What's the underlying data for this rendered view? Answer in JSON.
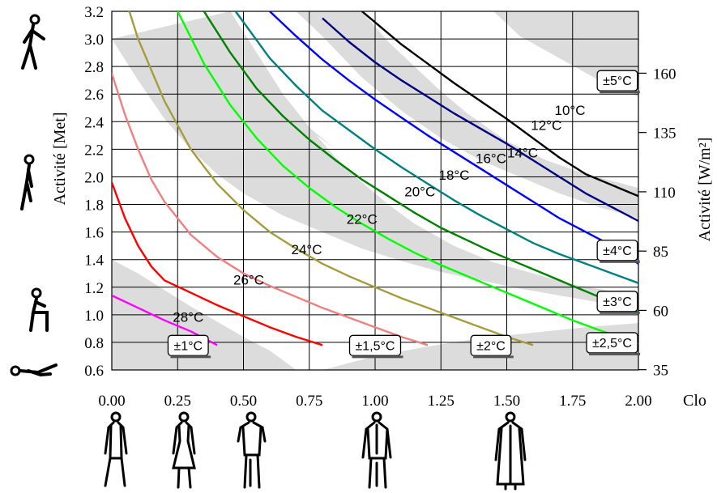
{
  "chart_data": {
    "type": "line",
    "xlabel": "Clo",
    "ylabel_left": "Activité [Met]",
    "ylabel_right": "Activité [W/m²]",
    "xlim": [
      0,
      2
    ],
    "ylim": [
      0.6,
      3.2
    ],
    "x_ticks": [
      "0.00",
      "0.25",
      "0.50",
      "0.75",
      "1.00",
      "1.25",
      "1.50",
      "1.75",
      "2.00"
    ],
    "y_ticks_left": [
      "0.6",
      "0.8",
      "1.0",
      "1.2",
      "1.4",
      "1.6",
      "1.8",
      "2.0",
      "2.2",
      "2.4",
      "2.6",
      "2.8",
      "3.0",
      "3.2"
    ],
    "y_ticks_right": [
      {
        "value": 35,
        "label": "35"
      },
      {
        "value": 60,
        "label": "60"
      },
      {
        "value": 85,
        "label": "85"
      },
      {
        "value": 110,
        "label": "110"
      },
      {
        "value": 135,
        "label": "135"
      },
      {
        "value": 160,
        "label": "160"
      }
    ],
    "grid": true,
    "series": [
      {
        "name": "28°C",
        "color": "#ff00ff",
        "label_at": [
          0.29,
          0.95
        ],
        "x": [
          0.0,
          0.1,
          0.2,
          0.3,
          0.4
        ],
        "y": [
          1.14,
          1.05,
          0.96,
          0.88,
          0.78
        ]
      },
      {
        "name": "26°C",
        "color": "#ff0000",
        "label_at": [
          0.52,
          1.22
        ],
        "x": [
          0.0,
          0.05,
          0.1,
          0.15,
          0.2,
          0.3,
          0.4,
          0.5,
          0.6,
          0.7,
          0.8
        ],
        "y": [
          1.96,
          1.7,
          1.5,
          1.35,
          1.25,
          1.16,
          1.07,
          0.99,
          0.91,
          0.84,
          0.78
        ]
      },
      {
        "name": "24°C",
        "color": "#f08080",
        "label_at": [
          0.74,
          1.44
        ],
        "x": [
          0.0,
          0.05,
          0.1,
          0.15,
          0.2,
          0.3,
          0.4,
          0.5,
          0.6,
          0.7,
          0.8,
          0.9,
          1.0,
          1.1,
          1.2
        ],
        "y": [
          2.75,
          2.45,
          2.2,
          1.98,
          1.82,
          1.58,
          1.42,
          1.3,
          1.21,
          1.13,
          1.05,
          0.98,
          0.91,
          0.84,
          0.78
        ]
      },
      {
        "name": "22°C",
        "color": "#a59d3c",
        "label_at": [
          0.95,
          1.66
        ],
        "x": [
          0.0,
          0.1,
          0.2,
          0.3,
          0.4,
          0.5,
          0.6,
          0.7,
          0.8,
          0.9,
          1.0,
          1.1,
          1.2,
          1.3,
          1.4,
          1.5,
          1.6
        ],
        "y": [
          3.6,
          3.0,
          2.55,
          2.2,
          1.95,
          1.76,
          1.6,
          1.48,
          1.37,
          1.28,
          1.2,
          1.12,
          1.05,
          0.98,
          0.91,
          0.84,
          0.78
        ]
      },
      {
        "name": "20°C",
        "color": "#00ff00",
        "label_at": [
          1.17,
          1.86
        ],
        "x": [
          0.25,
          0.35,
          0.45,
          0.55,
          0.65,
          0.75,
          0.85,
          0.95,
          1.05,
          1.15,
          1.25,
          1.35,
          1.45,
          1.55,
          1.65,
          1.75,
          1.85,
          2.0
        ],
        "y": [
          3.2,
          2.82,
          2.52,
          2.28,
          2.08,
          1.92,
          1.78,
          1.66,
          1.55,
          1.45,
          1.36,
          1.28,
          1.2,
          1.12,
          1.04,
          0.96,
          0.89,
          0.79
        ]
      },
      {
        "name": "18°C",
        "color": "#008000",
        "label_at": [
          1.3,
          1.98
        ],
        "x": [
          0.35,
          0.45,
          0.55,
          0.65,
          0.75,
          0.85,
          0.95,
          1.05,
          1.15,
          1.25,
          1.35,
          1.45,
          1.55,
          1.65,
          1.75,
          1.85,
          2.0
        ],
        "y": [
          3.2,
          2.9,
          2.64,
          2.44,
          2.27,
          2.12,
          1.98,
          1.86,
          1.74,
          1.63,
          1.54,
          1.45,
          1.37,
          1.29,
          1.21,
          1.13,
          1.02
        ]
      },
      {
        "name": "16°C",
        "color": "#008080",
        "label_at": [
          1.44,
          2.1
        ],
        "x": [
          0.47,
          0.6,
          0.7,
          0.8,
          0.9,
          1.0,
          1.1,
          1.2,
          1.3,
          1.4,
          1.5,
          1.6,
          1.7,
          1.8,
          1.9,
          2.0
        ],
        "y": [
          3.2,
          2.86,
          2.66,
          2.48,
          2.34,
          2.2,
          2.07,
          1.95,
          1.83,
          1.72,
          1.62,
          1.52,
          1.44,
          1.37,
          1.3,
          1.23
        ]
      },
      {
        "name": "14°C",
        "color": "#0000ff",
        "label_at": [
          1.56,
          2.14
        ],
        "x": [
          0.6,
          0.7,
          0.8,
          0.9,
          1.0,
          1.1,
          1.2,
          1.3,
          1.4,
          1.5,
          1.6,
          1.7,
          1.8,
          1.9,
          2.0
        ],
        "y": [
          3.2,
          3.02,
          2.85,
          2.7,
          2.56,
          2.43,
          2.3,
          2.18,
          2.06,
          1.94,
          1.82,
          1.7,
          1.6,
          1.5,
          1.37
        ]
      },
      {
        "name": "12°C",
        "color": "#000080",
        "label_at": [
          1.65,
          2.34
        ],
        "x": [
          0.8,
          0.9,
          1.0,
          1.1,
          1.2,
          1.3,
          1.4,
          1.5,
          1.6,
          1.7,
          1.8,
          1.9,
          2.0
        ],
        "y": [
          3.15,
          2.98,
          2.83,
          2.7,
          2.58,
          2.46,
          2.35,
          2.24,
          2.12,
          2.0,
          1.88,
          1.78,
          1.68
        ]
      },
      {
        "name": "10°C",
        "color": "#000000",
        "label_at": [
          1.74,
          2.45
        ],
        "x": [
          0.95,
          1.0,
          1.1,
          1.2,
          1.3,
          1.4,
          1.5,
          1.6,
          1.7,
          1.8,
          1.9,
          2.0
        ],
        "y": [
          3.2,
          3.12,
          2.96,
          2.82,
          2.68,
          2.55,
          2.42,
          2.28,
          2.14,
          2.02,
          1.94,
          1.86
        ]
      }
    ],
    "tolerance_labels": [
      {
        "text": "±1°C",
        "at": [
          0.29,
          0.78
        ]
      },
      {
        "text": "±1,5°C",
        "at": [
          1.0,
          0.78
        ]
      },
      {
        "text": "±2°C",
        "at": [
          1.44,
          0.78
        ]
      },
      {
        "text": "±2,5°C",
        "at": [
          1.9,
          0.8
        ]
      },
      {
        "text": "±3°C",
        "at": [
          1.92,
          1.1
        ]
      },
      {
        "text": "±4°C",
        "at": [
          1.92,
          1.47
        ]
      },
      {
        "text": "±5°C",
        "at": [
          1.92,
          2.7
        ]
      }
    ],
    "band_color": "#dcdcdc",
    "bands": [
      {
        "upper": [
          [
            0.0,
            1.4
          ],
          [
            0.1,
            1.3
          ],
          [
            0.2,
            1.18
          ],
          [
            0.3,
            1.06
          ],
          [
            0.4,
            0.95
          ],
          [
            0.5,
            0.84
          ],
          [
            0.6,
            0.74
          ],
          [
            0.7,
            0.6
          ]
        ],
        "lower": [
          [
            0.0,
            0.6
          ]
        ]
      },
      {
        "upper": [
          [
            0.8,
            0.6
          ],
          [
            1.0,
            0.7
          ],
          [
            1.2,
            0.77
          ],
          [
            1.4,
            0.83
          ],
          [
            1.6,
            0.87
          ],
          [
            1.8,
            0.91
          ],
          [
            2.0,
            0.94
          ]
        ],
        "lower": [
          [
            2.0,
            0.6
          ]
        ]
      },
      {
        "upper": [
          [
            0.45,
            3.2
          ],
          [
            0.55,
            2.9
          ],
          [
            0.65,
            2.6
          ],
          [
            0.75,
            2.36
          ],
          [
            0.85,
            2.14
          ],
          [
            0.95,
            1.96
          ],
          [
            1.05,
            1.8
          ],
          [
            1.15,
            1.66
          ],
          [
            1.3,
            1.5
          ],
          [
            1.45,
            1.38
          ],
          [
            1.6,
            1.3
          ],
          [
            1.75,
            1.22
          ],
          [
            1.9,
            1.17
          ],
          [
            2.0,
            1.14
          ]
        ],
        "lower": [
          [
            2.0,
            1.04
          ],
          [
            1.85,
            1.09
          ],
          [
            1.7,
            1.14
          ],
          [
            1.55,
            1.19
          ],
          [
            1.4,
            1.25
          ],
          [
            1.25,
            1.31
          ],
          [
            1.1,
            1.39
          ],
          [
            0.95,
            1.48
          ],
          [
            0.8,
            1.6
          ],
          [
            0.65,
            1.72
          ],
          [
            0.5,
            1.88
          ],
          [
            0.4,
            2.02
          ],
          [
            0.3,
            2.2
          ],
          [
            0.2,
            2.42
          ],
          [
            0.1,
            2.7
          ],
          [
            0.0,
            3.0
          ]
        ]
      },
      {
        "upper": [
          [
            0.38,
            3.2
          ],
          [
            0.28,
            3.2
          ]
        ],
        "lower": [
          [
            0.28,
            3.2
          ],
          [
            0.32,
            3.2
          ]
        ]
      },
      {
        "upper": [
          [
            0.95,
            3.2
          ],
          [
            1.05,
            2.98
          ],
          [
            1.15,
            2.8
          ],
          [
            1.25,
            2.62
          ],
          [
            1.35,
            2.46
          ],
          [
            1.5,
            2.26
          ],
          [
            1.65,
            2.12
          ],
          [
            1.8,
            2.02
          ],
          [
            2.0,
            1.92
          ]
        ],
        "lower": [
          [
            2.0,
            1.7
          ],
          [
            1.85,
            1.78
          ],
          [
            1.7,
            1.88
          ],
          [
            1.55,
            2.0
          ],
          [
            1.4,
            2.12
          ],
          [
            1.25,
            2.28
          ],
          [
            1.1,
            2.48
          ],
          [
            0.95,
            2.72
          ],
          [
            0.8,
            3.02
          ],
          [
            0.7,
            3.2
          ]
        ]
      },
      {
        "upper": [
          [
            1.38,
            3.2
          ],
          [
            2.0,
            3.2
          ]
        ],
        "lower": [
          [
            2.0,
            2.58
          ],
          [
            1.85,
            2.7
          ],
          [
            1.7,
            2.86
          ],
          [
            1.55,
            3.02
          ],
          [
            1.45,
            3.2
          ]
        ]
      },
      {
        "upper": [
          [
            0.48,
            2.78
          ],
          [
            0.6,
            2.56
          ],
          [
            0.72,
            2.38
          ],
          [
            0.85,
            2.2
          ]
        ],
        "lower": [
          [
            0.85,
            2.2
          ],
          [
            0.48,
            2.78
          ]
        ]
      }
    ]
  }
}
